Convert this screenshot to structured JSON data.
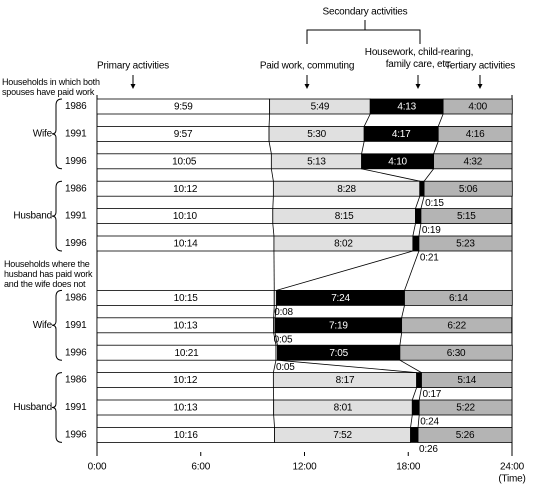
{
  "chart_data": {
    "type": "bar",
    "orientation": "horizontal",
    "stacked": true,
    "secondary_label": "Secondary activities",
    "xlabel": "(Time)",
    "xlim": [
      0,
      1440
    ],
    "xticks": [
      {
        "value": 0,
        "label": "0:00"
      },
      {
        "value": 360,
        "label": "6:00"
      },
      {
        "value": 720,
        "label": "12:00"
      },
      {
        "value": 1080,
        "label": "18:00"
      },
      {
        "value": 1440,
        "label": "24:00"
      }
    ],
    "groups": [
      {
        "title": "Households in which both spouses have paid work",
        "subgroups": [
          "Wife",
          "Husband"
        ]
      },
      {
        "title": "Households where the husband has paid work and the wife does not",
        "subgroups": [
          "Wife",
          "Husband"
        ]
      }
    ],
    "categories": [
      "1986",
      "1991",
      "1996",
      "1986",
      "1991",
      "1996",
      "1986",
      "1991",
      "1996",
      "1986",
      "1991",
      "1996"
    ],
    "series": [
      {
        "name": "Primary activities",
        "color": "#ffffff",
        "values": [
          599,
          597,
          605,
          612,
          610,
          614,
          615,
          613,
          621,
          612,
          613,
          616
        ],
        "value_labels": [
          "9:59",
          "9:57",
          "10:05",
          "10:12",
          "10:10",
          "10:14",
          "10:15",
          "10:13",
          "10:21",
          "10:12",
          "10:13",
          "10:16"
        ]
      },
      {
        "name": "Paid work, commuting",
        "color": "#e0e0e0",
        "values": [
          349,
          330,
          313,
          508,
          495,
          482,
          8,
          5,
          5,
          497,
          481,
          472
        ],
        "value_labels": [
          "5:49",
          "5:30",
          "5:13",
          "8:28",
          "8:15",
          "8:02",
          "0:08",
          "0:05",
          "0:05",
          "8:17",
          "8:01",
          "7:52"
        ]
      },
      {
        "name": "Housework, child-rearing, family care, etc.",
        "color": "#000000",
        "values": [
          253,
          257,
          250,
          15,
          19,
          21,
          444,
          439,
          425,
          17,
          24,
          26
        ],
        "value_labels": [
          "4:13",
          "4:17",
          "4:10",
          "0:15",
          "0:19",
          "0:21",
          "7:24",
          "7:19",
          "7:05",
          "0:17",
          "0:24",
          "0:26"
        ]
      },
      {
        "name": "Tertiary activities",
        "color": "#b4b4b4",
        "values": [
          240,
          256,
          272,
          306,
          315,
          323,
          374,
          382,
          390,
          314,
          322,
          326
        ],
        "value_labels": [
          "4:00",
          "4:16",
          "4:32",
          "5:06",
          "5:15",
          "5:23",
          "6:14",
          "6:22",
          "6:30",
          "5:14",
          "5:22",
          "5:26"
        ]
      }
    ]
  }
}
